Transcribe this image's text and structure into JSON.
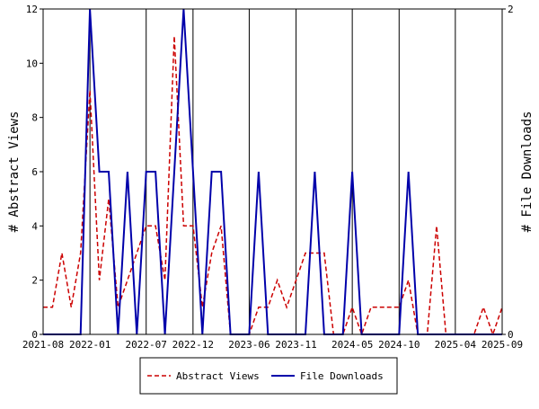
{
  "chart_data": {
    "type": "line",
    "grid": "vertical",
    "legend_position": "bottom-center",
    "yaxis_left": {
      "label": "# Abstract Views",
      "ylim": [
        0,
        12
      ],
      "ticks": [
        0,
        2,
        4,
        6,
        8,
        10,
        12
      ]
    },
    "yaxis_right": {
      "label": "# File Downloads",
      "ylim": [
        0,
        2
      ],
      "ticks": [
        0,
        2
      ]
    },
    "xaxis": {
      "ticks": [
        {
          "label": "2021-08",
          "t": 0
        },
        {
          "label": "2022-01",
          "t": 5
        },
        {
          "label": "2022-07",
          "t": 11
        },
        {
          "label": "2022-12",
          "t": 16
        },
        {
          "label": "2023-06",
          "t": 22
        },
        {
          "label": "2023-11",
          "t": 27
        },
        {
          "label": "2024-05",
          "t": 33
        },
        {
          "label": "2024-10",
          "t": 38
        },
        {
          "label": "2025-04",
          "t": 44
        },
        {
          "label": "2025-09",
          "t": 49
        }
      ],
      "range": [
        0,
        49
      ]
    },
    "series": [
      {
        "name": "Abstract Views",
        "axis": "left",
        "color": "#cc0000",
        "dash": "dashed",
        "points": [
          [
            0,
            1
          ],
          [
            1,
            1
          ],
          [
            2,
            3
          ],
          [
            3,
            1
          ],
          [
            4,
            3
          ],
          [
            5,
            9
          ],
          [
            6,
            2
          ],
          [
            7,
            5
          ],
          [
            8,
            1
          ],
          [
            9,
            2
          ],
          [
            10,
            3
          ],
          [
            11,
            4
          ],
          [
            12,
            4
          ],
          [
            13,
            2
          ],
          [
            14,
            11
          ],
          [
            15,
            4
          ],
          [
            16,
            4
          ],
          [
            17,
            1
          ],
          [
            18,
            3
          ],
          [
            19,
            4
          ],
          [
            20,
            0
          ],
          [
            21,
            0
          ],
          [
            22,
            0
          ],
          [
            23,
            1
          ],
          [
            24,
            1
          ],
          [
            25,
            2
          ],
          [
            26,
            1
          ],
          [
            27,
            2
          ],
          [
            28,
            3
          ],
          [
            29,
            3
          ],
          [
            30,
            3
          ],
          [
            31,
            0
          ],
          [
            32,
            0
          ],
          [
            33,
            1
          ],
          [
            34,
            0
          ],
          [
            35,
            1
          ],
          [
            36,
            1
          ],
          [
            37,
            1
          ],
          [
            38,
            1
          ],
          [
            39,
            2
          ],
          [
            40,
            0
          ],
          [
            41,
            0
          ],
          [
            42,
            4
          ],
          [
            43,
            0
          ],
          [
            44,
            0
          ],
          [
            45,
            0
          ],
          [
            46,
            0
          ],
          [
            47,
            1
          ],
          [
            48,
            0
          ],
          [
            49,
            1
          ]
        ]
      },
      {
        "name": "File Downloads",
        "axis": "right",
        "color": "#0000aa",
        "dash": "solid",
        "points": [
          [
            0,
            0
          ],
          [
            1,
            0
          ],
          [
            2,
            0
          ],
          [
            3,
            0
          ],
          [
            4,
            0
          ],
          [
            5,
            2
          ],
          [
            6,
            1
          ],
          [
            7,
            1
          ],
          [
            8,
            0
          ],
          [
            9,
            1
          ],
          [
            10,
            0
          ],
          [
            11,
            1
          ],
          [
            12,
            1
          ],
          [
            13,
            0
          ],
          [
            14,
            1
          ],
          [
            15,
            2
          ],
          [
            16,
            1
          ],
          [
            17,
            0
          ],
          [
            18,
            1
          ],
          [
            19,
            1
          ],
          [
            20,
            0
          ],
          [
            21,
            0
          ],
          [
            22,
            0
          ],
          [
            23,
            1
          ],
          [
            24,
            0
          ],
          [
            25,
            0
          ],
          [
            26,
            0
          ],
          [
            27,
            0
          ],
          [
            28,
            0
          ],
          [
            29,
            1
          ],
          [
            30,
            0
          ],
          [
            31,
            0
          ],
          [
            32,
            0
          ],
          [
            33,
            1
          ],
          [
            34,
            0
          ],
          [
            35,
            0
          ],
          [
            36,
            0
          ],
          [
            37,
            0
          ],
          [
            38,
            0
          ],
          [
            39,
            1
          ],
          [
            40,
            0
          ],
          [
            41,
            0
          ],
          [
            42,
            0
          ],
          [
            43,
            0
          ],
          [
            44,
            0
          ],
          [
            45,
            0
          ],
          [
            46,
            0
          ],
          [
            47,
            0
          ],
          [
            48,
            0
          ],
          [
            49,
            0
          ]
        ]
      }
    ]
  }
}
